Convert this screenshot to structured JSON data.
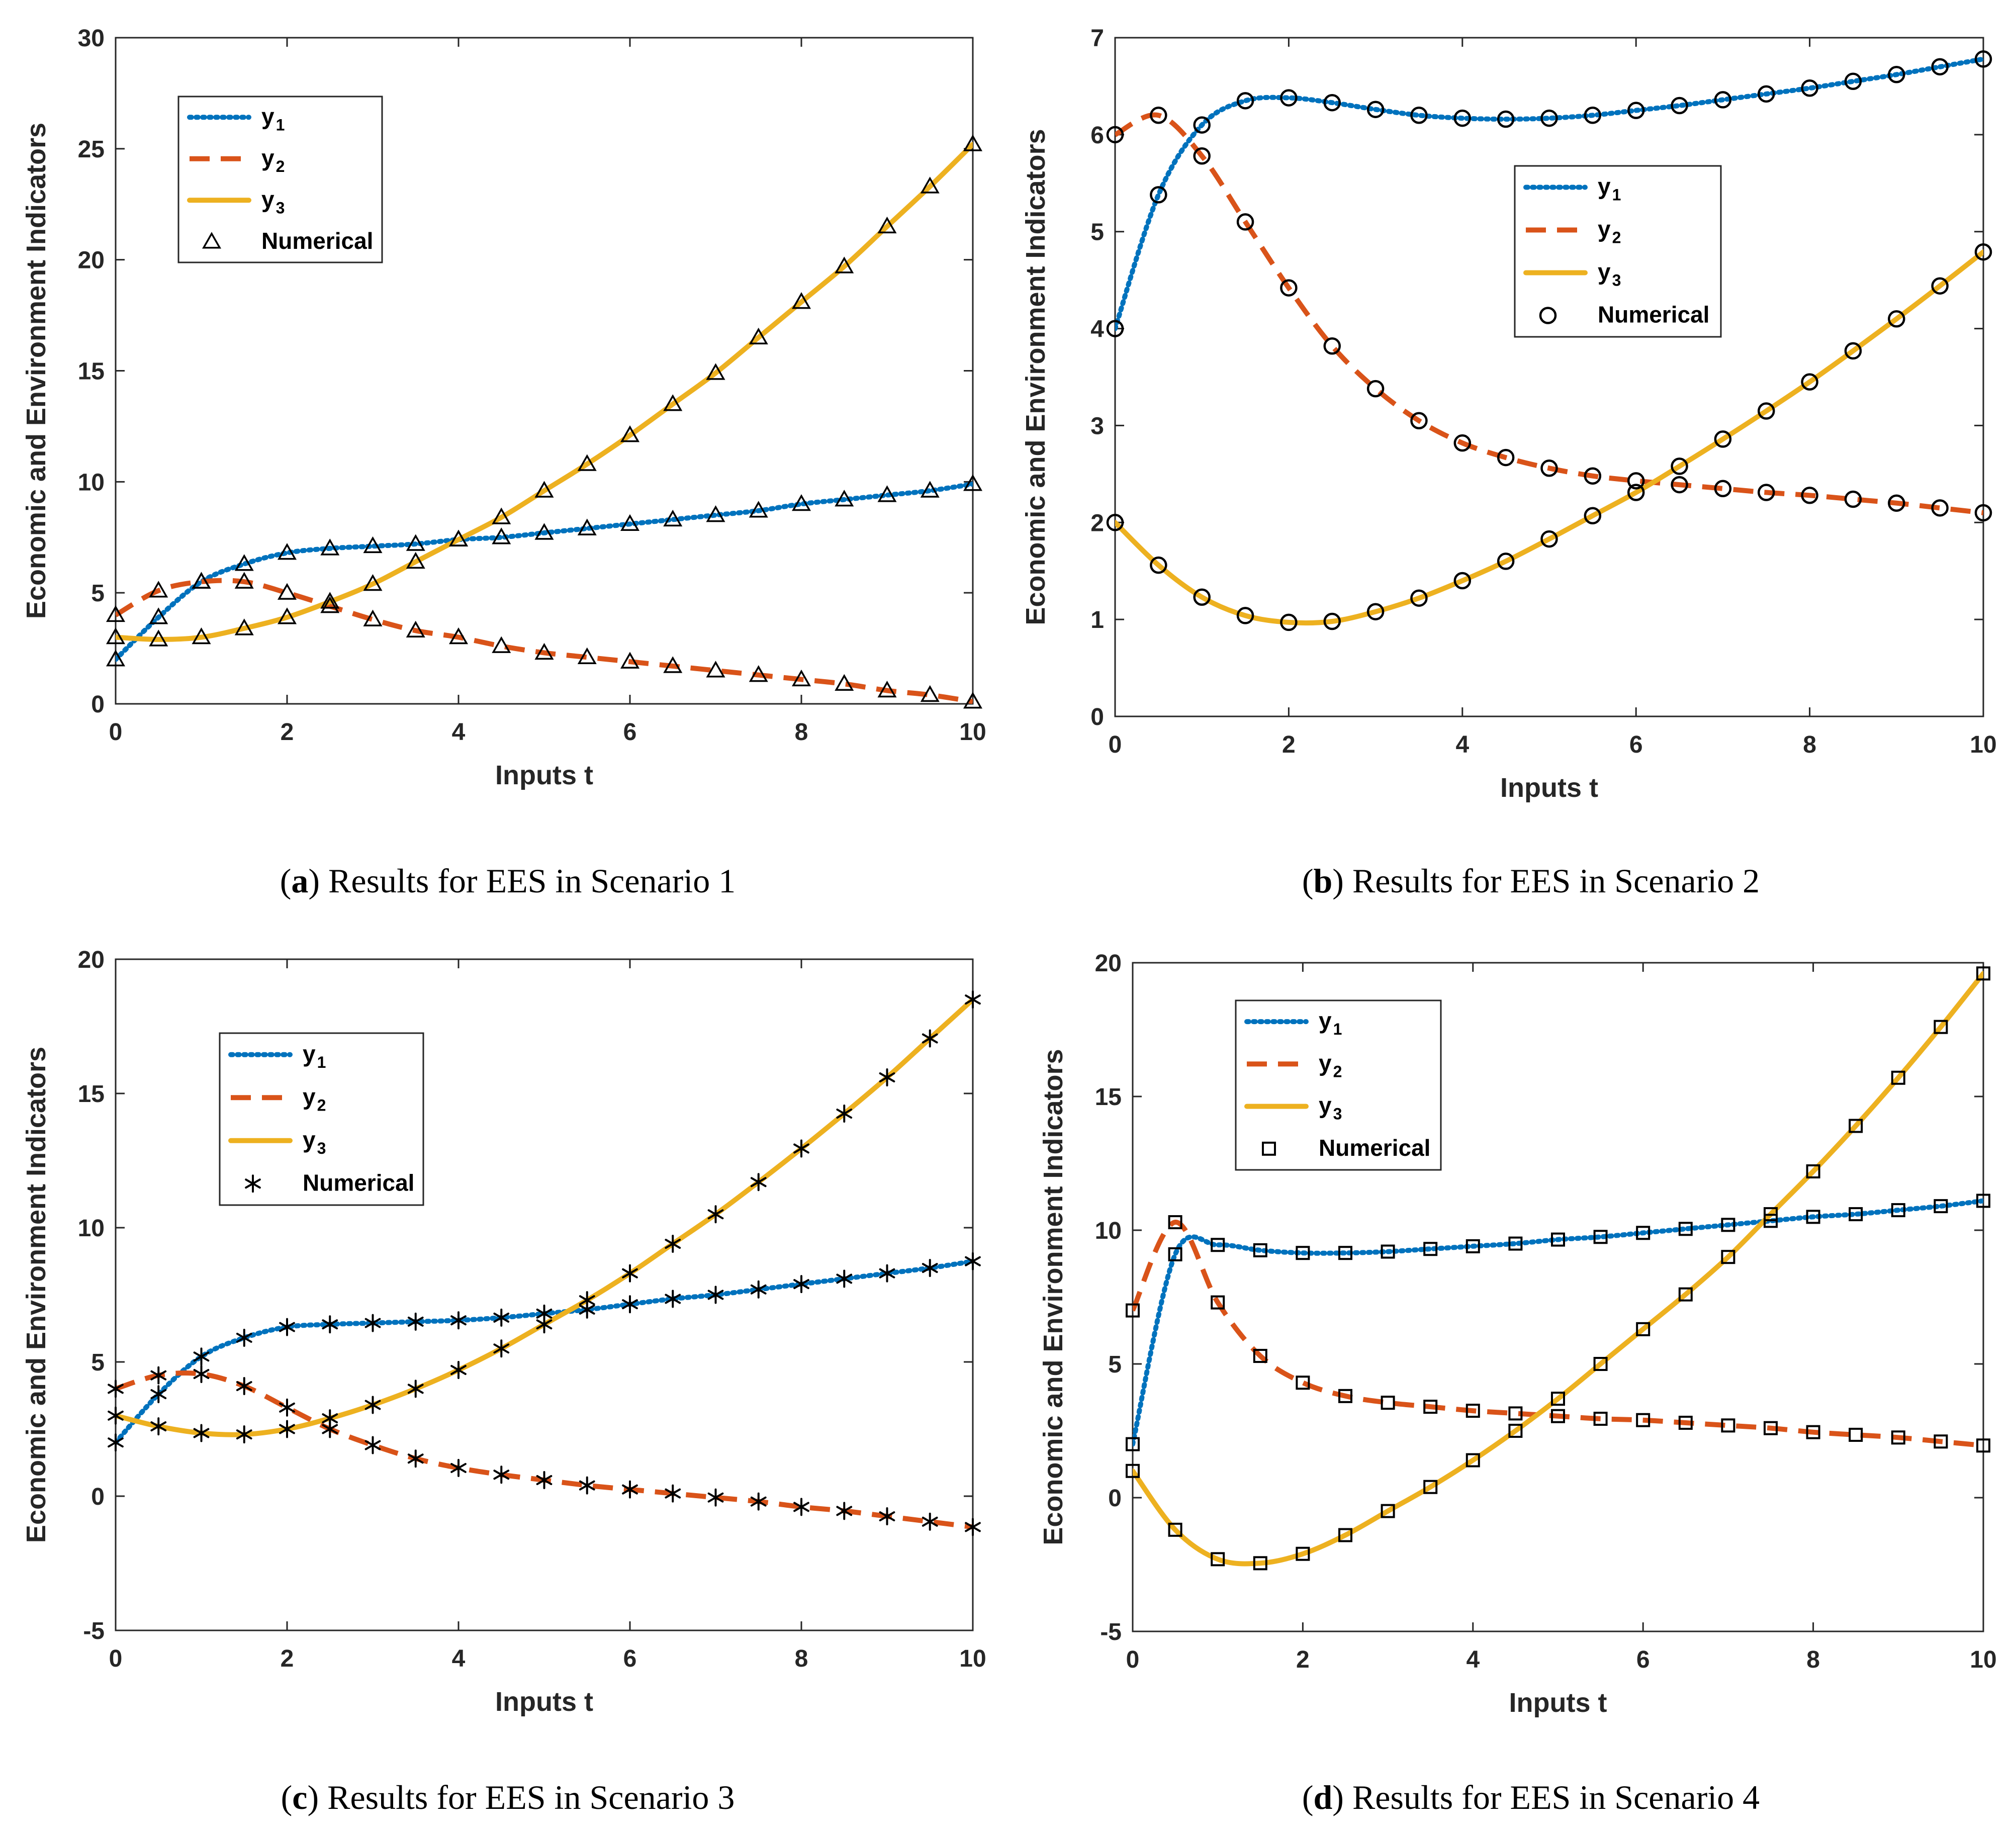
{
  "figure": {
    "captions": [
      {
        "letter": "a",
        "text": "Results for EES in Scenario 1"
      },
      {
        "letter": "b",
        "text": "Results for EES in Scenario 2"
      },
      {
        "letter": "c",
        "text": "Results for EES in Scenario 3"
      },
      {
        "letter": "d",
        "text": "Results for EES in Scenario 4"
      }
    ]
  },
  "colors": {
    "y1": "#0072BD",
    "y2": "#D95319",
    "y3": "#EDB120",
    "marker": "#000000"
  },
  "chart_data": [
    {
      "type": "line",
      "title": "",
      "xlabel": "Inputs t",
      "ylabel": "Economic and Environment Indicators",
      "xlim": [
        0,
        10
      ],
      "ylim": [
        0,
        30
      ],
      "xticks": [
        0,
        2,
        4,
        6,
        8,
        10
      ],
      "yticks": [
        0,
        5,
        10,
        15,
        20,
        25,
        30
      ],
      "marker": "triangle",
      "legend_position": "upper-left",
      "legend": [
        {
          "main": "y",
          "sub": "1"
        },
        {
          "main": "y",
          "sub": "2"
        },
        {
          "main": "y",
          "sub": "3"
        },
        {
          "main": "Numerical",
          "sub": ""
        }
      ],
      "x": [
        0,
        0.5,
        1,
        1.5,
        2,
        2.5,
        3,
        3.5,
        4,
        4.5,
        5,
        5.5,
        6,
        6.5,
        7,
        7.5,
        8,
        8.5,
        9,
        9.5,
        10
      ],
      "series": [
        {
          "name": "y1",
          "values": [
            2.0,
            3.9,
            5.5,
            6.3,
            6.8,
            7.0,
            7.1,
            7.2,
            7.4,
            7.5,
            7.7,
            7.9,
            8.1,
            8.3,
            8.5,
            8.7,
            9.0,
            9.2,
            9.4,
            9.6,
            9.9
          ]
        },
        {
          "name": "y2",
          "values": [
            4.0,
            5.1,
            5.5,
            5.5,
            5.0,
            4.4,
            3.8,
            3.3,
            3.0,
            2.6,
            2.3,
            2.1,
            1.9,
            1.7,
            1.5,
            1.3,
            1.1,
            0.9,
            0.6,
            0.4,
            0.1
          ]
        },
        {
          "name": "y3",
          "values": [
            3.0,
            2.9,
            3.0,
            3.4,
            3.9,
            4.6,
            5.4,
            6.4,
            7.4,
            8.4,
            9.6,
            10.8,
            12.1,
            13.5,
            14.9,
            16.5,
            18.1,
            19.7,
            21.5,
            23.3,
            25.2
          ]
        }
      ]
    },
    {
      "type": "line",
      "title": "",
      "xlabel": "Inputs t",
      "ylabel": "Economic and Environment Indicators",
      "xlim": [
        0,
        10
      ],
      "ylim": [
        0,
        7
      ],
      "xticks": [
        0,
        2,
        4,
        6,
        8,
        10
      ],
      "yticks": [
        0,
        1,
        2,
        3,
        4,
        5,
        6,
        7
      ],
      "marker": "circle",
      "legend_position": "right-center",
      "legend": [
        {
          "main": "y",
          "sub": "1"
        },
        {
          "main": "y",
          "sub": "2"
        },
        {
          "main": "y",
          "sub": "3"
        },
        {
          "main": "Numerical",
          "sub": ""
        }
      ],
      "x": [
        0,
        0.5,
        1,
        1.5,
        2,
        2.5,
        3,
        3.5,
        4,
        4.5,
        5,
        5.5,
        6,
        6.5,
        7,
        7.5,
        8,
        8.5,
        9,
        9.5,
        10
      ],
      "series": [
        {
          "name": "y1",
          "values": [
            4.0,
            5.38,
            6.1,
            6.35,
            6.38,
            6.33,
            6.26,
            6.2,
            6.17,
            6.16,
            6.17,
            6.2,
            6.25,
            6.3,
            6.36,
            6.42,
            6.48,
            6.55,
            6.62,
            6.7,
            6.78
          ]
        },
        {
          "name": "y2",
          "values": [
            6.0,
            6.2,
            5.78,
            5.1,
            4.42,
            3.82,
            3.38,
            3.05,
            2.82,
            2.67,
            2.56,
            2.48,
            2.43,
            2.39,
            2.35,
            2.31,
            2.28,
            2.24,
            2.2,
            2.15,
            2.1
          ]
        },
        {
          "name": "y3",
          "values": [
            2.0,
            1.56,
            1.23,
            1.04,
            0.97,
            0.98,
            1.08,
            1.22,
            1.4,
            1.6,
            1.83,
            2.07,
            2.31,
            2.58,
            2.86,
            3.15,
            3.45,
            3.77,
            4.1,
            4.44,
            4.79
          ]
        }
      ]
    },
    {
      "type": "line",
      "title": "",
      "xlabel": "Inputs t",
      "ylabel": "Economic and Environment Indicators",
      "xlim": [
        0,
        10
      ],
      "ylim": [
        -5,
        20
      ],
      "xticks": [
        0,
        2,
        4,
        6,
        8,
        10
      ],
      "yticks": [
        -5,
        0,
        5,
        10,
        15,
        20
      ],
      "marker": "asterisk",
      "legend_position": "upper-left",
      "legend": [
        {
          "main": "y",
          "sub": "1"
        },
        {
          "main": "y",
          "sub": "2"
        },
        {
          "main": "y",
          "sub": "3"
        },
        {
          "main": "Numerical",
          "sub": ""
        }
      ],
      "x": [
        0,
        0.5,
        1,
        1.5,
        2,
        2.5,
        3,
        3.5,
        4,
        4.5,
        5,
        5.5,
        6,
        6.5,
        7,
        7.5,
        8,
        8.5,
        9,
        9.5,
        10
      ],
      "series": [
        {
          "name": "y1",
          "values": [
            2.0,
            3.8,
            5.2,
            5.9,
            6.3,
            6.4,
            6.45,
            6.5,
            6.55,
            6.65,
            6.8,
            6.95,
            7.15,
            7.35,
            7.5,
            7.7,
            7.9,
            8.1,
            8.3,
            8.5,
            8.75
          ]
        },
        {
          "name": "y2",
          "values": [
            4.0,
            4.5,
            4.55,
            4.1,
            3.3,
            2.5,
            1.9,
            1.4,
            1.05,
            0.8,
            0.6,
            0.4,
            0.25,
            0.1,
            -0.05,
            -0.2,
            -0.4,
            -0.55,
            -0.75,
            -0.95,
            -1.15
          ]
        },
        {
          "name": "y3",
          "values": [
            3.0,
            2.6,
            2.35,
            2.3,
            2.5,
            2.9,
            3.4,
            4.0,
            4.7,
            5.5,
            6.4,
            7.3,
            8.3,
            9.4,
            10.5,
            11.7,
            12.95,
            14.25,
            15.6,
            17.05,
            18.5
          ]
        }
      ]
    },
    {
      "type": "line",
      "title": "",
      "xlabel": "Inputs t",
      "ylabel": "Economic and Environment Indicators",
      "xlim": [
        0,
        10
      ],
      "ylim": [
        -5,
        20
      ],
      "xticks": [
        0,
        2,
        4,
        6,
        8,
        10
      ],
      "yticks": [
        -5,
        0,
        5,
        10,
        15,
        20
      ],
      "marker": "square",
      "legend_position": "upper-left",
      "legend": [
        {
          "main": "y",
          "sub": "1"
        },
        {
          "main": "y",
          "sub": "2"
        },
        {
          "main": "y",
          "sub": "3"
        },
        {
          "main": "Numerical",
          "sub": ""
        }
      ],
      "x": [
        0,
        0.5,
        1,
        1.5,
        2,
        2.5,
        3,
        3.5,
        4,
        4.5,
        5,
        5.5,
        6,
        6.5,
        7,
        7.5,
        8,
        8.5,
        9,
        9.5,
        10
      ],
      "series": [
        {
          "name": "y1",
          "values": [
            2.0,
            9.1,
            9.45,
            9.25,
            9.15,
            9.15,
            9.2,
            9.3,
            9.4,
            9.5,
            9.65,
            9.75,
            9.9,
            10.05,
            10.2,
            10.35,
            10.5,
            10.6,
            10.75,
            10.9,
            11.1
          ]
        },
        {
          "name": "y2",
          "values": [
            7.0,
            10.3,
            7.3,
            5.3,
            4.3,
            3.8,
            3.55,
            3.4,
            3.25,
            3.15,
            3.05,
            2.95,
            2.9,
            2.8,
            2.7,
            2.6,
            2.45,
            2.35,
            2.25,
            2.1,
            1.95
          ]
        },
        {
          "name": "y3",
          "values": [
            1.0,
            -1.2,
            -2.3,
            -2.45,
            -2.1,
            -1.4,
            -0.5,
            0.4,
            1.4,
            2.5,
            3.7,
            5.0,
            6.3,
            7.6,
            9.0,
            10.6,
            12.2,
            13.9,
            15.7,
            17.6,
            19.6
          ]
        }
      ]
    }
  ]
}
